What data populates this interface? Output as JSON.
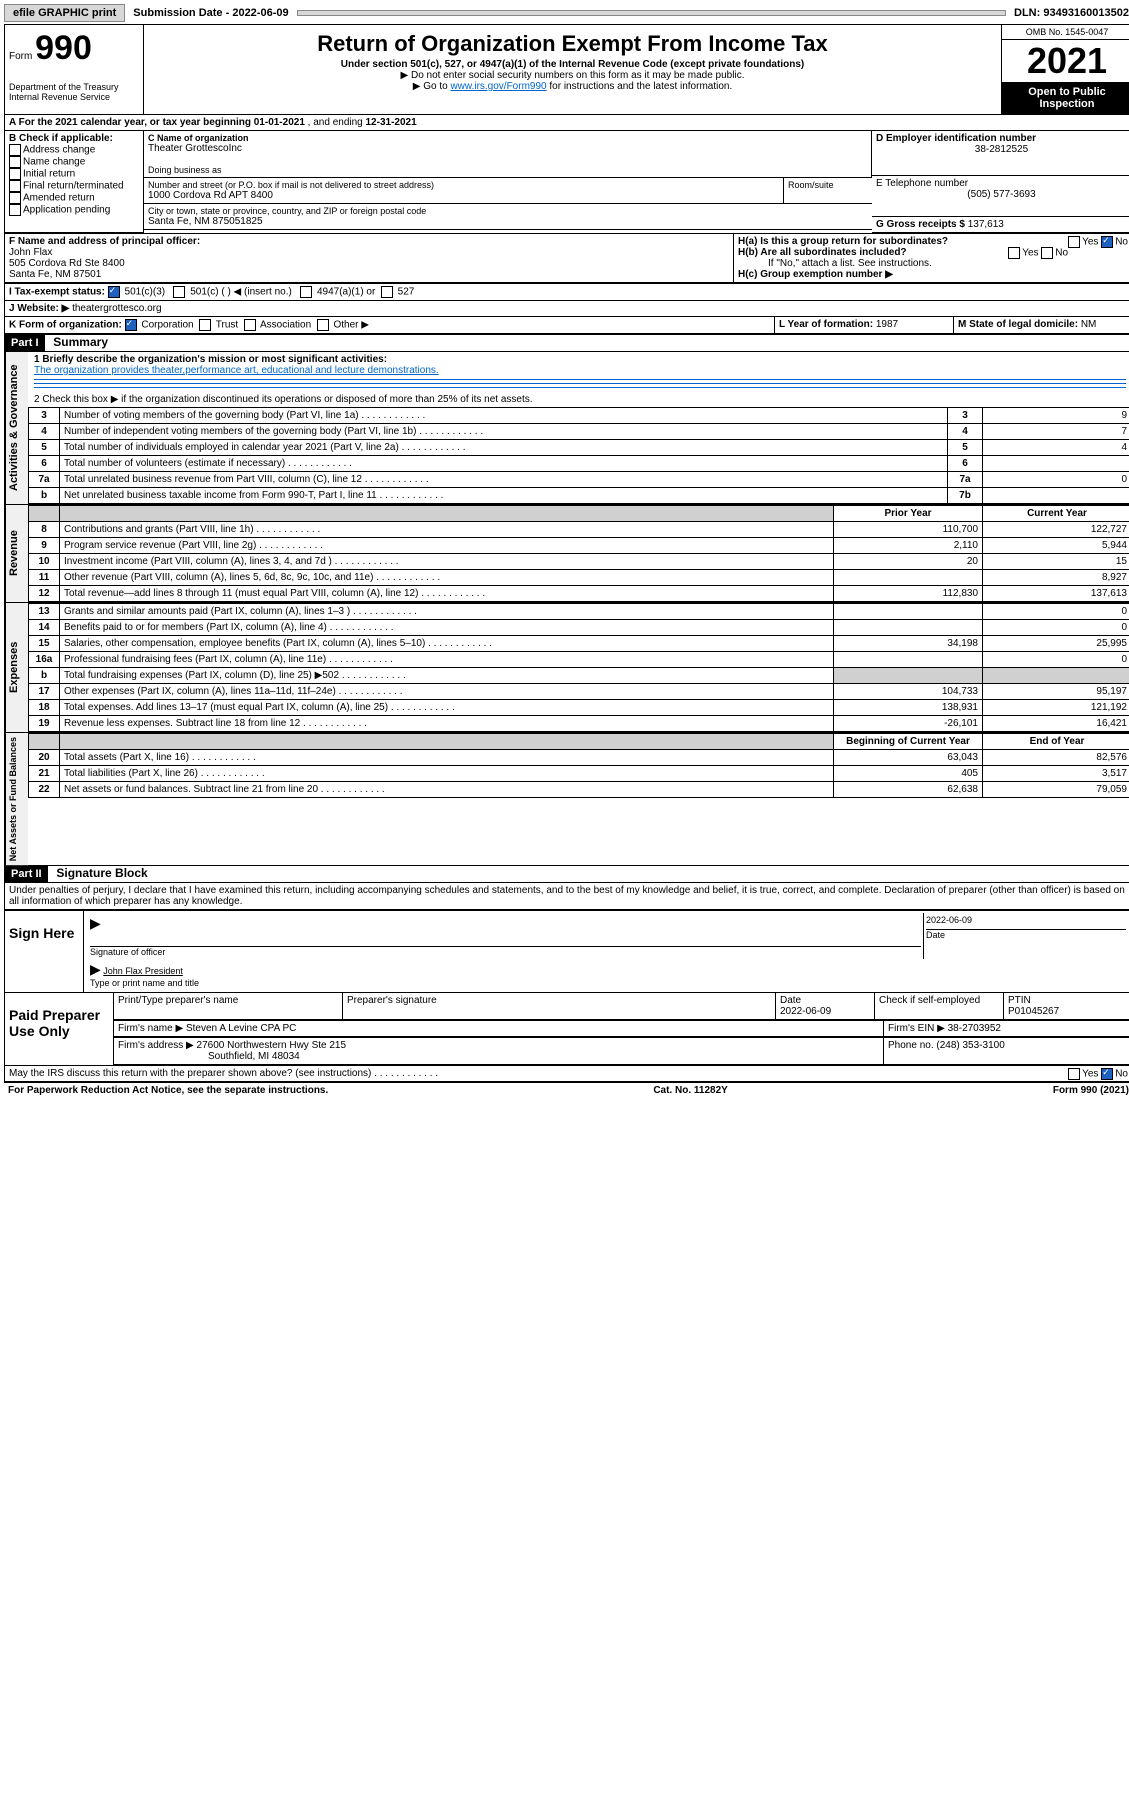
{
  "topbar": {
    "efile": "efile GRAPHIC print",
    "sub_label": "Submission Date - ",
    "sub_date": "2022-06-09",
    "dln_label": "DLN: ",
    "dln": "93493160013502"
  },
  "header": {
    "form_prefix": "Form",
    "form_num": "990",
    "dept": "Department of the Treasury\nInternal Revenue Service",
    "title": "Return of Organization Exempt From Income Tax",
    "subtitle": "Under section 501(c), 527, or 4947(a)(1) of the Internal Revenue Code (except private foundations)",
    "note1": "▶ Do not enter social security numbers on this form as it may be made public.",
    "note2_pre": "▶ Go to ",
    "note2_link": "www.irs.gov/Form990",
    "note2_post": " for instructions and the latest information.",
    "omb": "OMB No. 1545-0047",
    "year": "2021",
    "inspect": "Open to Public Inspection"
  },
  "period": {
    "text_a": "A For the 2021 calendar year, or tax year beginning ",
    "begin": "01-01-2021",
    "mid": " , and ending ",
    "end": "12-31-2021"
  },
  "box_b": {
    "label": "B Check if applicable:",
    "opts": [
      "Address change",
      "Name change",
      "Initial return",
      "Final return/terminated",
      "Amended return",
      "Application pending"
    ]
  },
  "box_c": {
    "label": "C Name of organization",
    "name": "Theater GrottescoInc",
    "dba_label": "Doing business as",
    "addr_label": "Number and street (or P.O. box if mail is not delivered to street address)",
    "room_label": "Room/suite",
    "addr": "1000 Cordova Rd APT 8400",
    "city_label": "City or town, state or province, country, and ZIP or foreign postal code",
    "city": "Santa Fe, NM  875051825"
  },
  "box_d": {
    "label": "D Employer identification number",
    "val": "38-2812525"
  },
  "box_e": {
    "label": "E Telephone number",
    "val": "(505) 577-3693"
  },
  "box_g": {
    "label": "G Gross receipts $ ",
    "val": "137,613"
  },
  "box_f": {
    "label": "F Name and address of principal officer:",
    "name": "John Flax",
    "addr1": "505 Cordova Rd Ste 8400",
    "addr2": "Santa Fe, NM  87501"
  },
  "box_h": {
    "a": "H(a)  Is this a group return for subordinates?",
    "b": "H(b)  Are all subordinates included?",
    "b_note": "If \"No,\" attach a list. See instructions.",
    "c": "H(c)  Group exemption number ▶",
    "yes": "Yes",
    "no": "No"
  },
  "box_i": {
    "label": "I    Tax-exempt status:",
    "c3": "501(c)(3)",
    "c": "501(c) (   ) ◀ (insert no.)",
    "a1": "4947(a)(1) or",
    "s527": "527"
  },
  "box_j": {
    "label": "J   Website: ▶ ",
    "val": "theatergrottesco.org"
  },
  "box_k": {
    "label": "K Form of organization:",
    "corp": "Corporation",
    "trust": "Trust",
    "assoc": "Association",
    "other": "Other ▶"
  },
  "box_l": {
    "label": "L Year of formation: ",
    "val": "1987"
  },
  "box_m": {
    "label": "M State of legal domicile: ",
    "val": "NM"
  },
  "parts": {
    "p1": "Part I",
    "p1_title": "Summary",
    "p2": "Part II",
    "p2_title": "Signature Block"
  },
  "summary": {
    "line1_label": "1   Briefly describe the organization's mission or most significant activities:",
    "line1_text": "The organization provides theater,performance art, educational and lecture demonstrations.",
    "line2": "2   Check this box ▶        if the organization discontinued its operations or disposed of more than 25% of its net assets.",
    "prior_hdr": "Prior Year",
    "curr_hdr": "Current Year",
    "begin_hdr": "Beginning of Current Year",
    "end_hdr": "End of Year",
    "rows_gov": [
      {
        "n": "3",
        "d": "Number of voting members of the governing body (Part VI, line 1a)",
        "k": "3",
        "v": "9"
      },
      {
        "n": "4",
        "d": "Number of independent voting members of the governing body (Part VI, line 1b)",
        "k": "4",
        "v": "7"
      },
      {
        "n": "5",
        "d": "Total number of individuals employed in calendar year 2021 (Part V, line 2a)",
        "k": "5",
        "v": "4"
      },
      {
        "n": "6",
        "d": "Total number of volunteers (estimate if necessary)",
        "k": "6",
        "v": ""
      },
      {
        "n": "7a",
        "d": "Total unrelated business revenue from Part VIII, column (C), line 12",
        "k": "7a",
        "v": "0"
      },
      {
        "n": "b",
        "d": "Net unrelated business taxable income from Form 990-T, Part I, line 11",
        "k": "7b",
        "v": ""
      }
    ],
    "rows_rev": [
      {
        "n": "8",
        "d": "Contributions and grants (Part VIII, line 1h)",
        "p": "110,700",
        "c": "122,727"
      },
      {
        "n": "9",
        "d": "Program service revenue (Part VIII, line 2g)",
        "p": "2,110",
        "c": "5,944"
      },
      {
        "n": "10",
        "d": "Investment income (Part VIII, column (A), lines 3, 4, and 7d )",
        "p": "20",
        "c": "15"
      },
      {
        "n": "11",
        "d": "Other revenue (Part VIII, column (A), lines 5, 6d, 8c, 9c, 10c, and 11e)",
        "p": "",
        "c": "8,927"
      },
      {
        "n": "12",
        "d": "Total revenue—add lines 8 through 11 (must equal Part VIII, column (A), line 12)",
        "p": "112,830",
        "c": "137,613"
      }
    ],
    "rows_exp": [
      {
        "n": "13",
        "d": "Grants and similar amounts paid (Part IX, column (A), lines 1–3 )",
        "p": "",
        "c": "0"
      },
      {
        "n": "14",
        "d": "Benefits paid to or for members (Part IX, column (A), line 4)",
        "p": "",
        "c": "0"
      },
      {
        "n": "15",
        "d": "Salaries, other compensation, employee benefits (Part IX, column (A), lines 5–10)",
        "p": "34,198",
        "c": "25,995"
      },
      {
        "n": "16a",
        "d": "Professional fundraising fees (Part IX, column (A), line 11e)",
        "p": "",
        "c": "0"
      },
      {
        "n": "b",
        "d": "Total fundraising expenses (Part IX, column (D), line 25) ▶502",
        "p": "shade",
        "c": "shade"
      },
      {
        "n": "17",
        "d": "Other expenses (Part IX, column (A), lines 11a–11d, 11f–24e)",
        "p": "104,733",
        "c": "95,197"
      },
      {
        "n": "18",
        "d": "Total expenses. Add lines 13–17 (must equal Part IX, column (A), line 25)",
        "p": "138,931",
        "c": "121,192"
      },
      {
        "n": "19",
        "d": "Revenue less expenses. Subtract line 18 from line 12",
        "p": "-26,101",
        "c": "16,421"
      }
    ],
    "rows_net": [
      {
        "n": "20",
        "d": "Total assets (Part X, line 16)",
        "p": "63,043",
        "c": "82,576"
      },
      {
        "n": "21",
        "d": "Total liabilities (Part X, line 26)",
        "p": "405",
        "c": "3,517"
      },
      {
        "n": "22",
        "d": "Net assets or fund balances. Subtract line 21 from line 20",
        "p": "62,638",
        "c": "79,059"
      }
    ],
    "vert_gov": "Activities & Governance",
    "vert_rev": "Revenue",
    "vert_exp": "Expenses",
    "vert_net": "Net Assets or Fund Balances"
  },
  "sig": {
    "perjury": "Under penalties of perjury, I declare that I have examined this return, including accompanying schedules and statements, and to the best of my knowledge and belief, it is true, correct, and complete. Declaration of preparer (other than officer) is based on all information of which preparer has any knowledge.",
    "sign_here": "Sign Here",
    "sig_officer": "Signature of officer",
    "date": "Date",
    "sig_date": "2022-06-09",
    "name_title": "John Flax  President",
    "name_title_label": "Type or print name and title",
    "paid": "Paid Preparer Use Only",
    "prep_name_label": "Print/Type preparer's name",
    "prep_sig_label": "Preparer's signature",
    "prep_date_label": "Date",
    "prep_date": "2022-06-09",
    "check_se": "Check         if self-employed",
    "ptin_label": "PTIN",
    "ptin": "P01045267",
    "firm_name_label": "Firm's name    ▶ ",
    "firm_name": "Steven A Levine CPA PC",
    "firm_ein_label": "Firm's EIN ▶ ",
    "firm_ein": "38-2703952",
    "firm_addr_label": "Firm's address ▶ ",
    "firm_addr1": "27600 Northwestern Hwy Ste 215",
    "firm_addr2": "Southfield, MI  48034",
    "phone_label": "Phone no. ",
    "phone": "(248) 353-3100",
    "may_irs": "May the IRS discuss this return with the preparer shown above? (see instructions)"
  },
  "footer": {
    "left": "For Paperwork Reduction Act Notice, see the separate instructions.",
    "mid": "Cat. No. 11282Y",
    "right": "Form 990 (2021)"
  }
}
